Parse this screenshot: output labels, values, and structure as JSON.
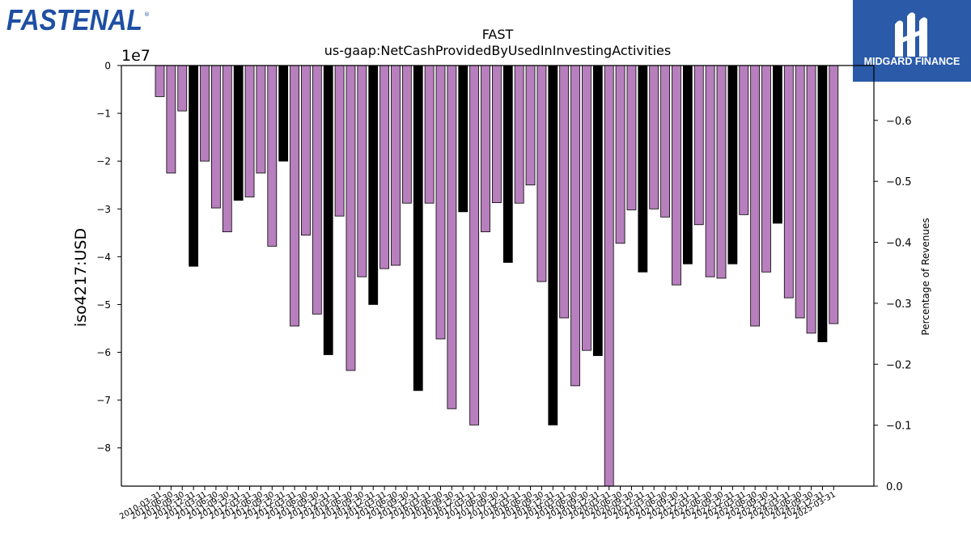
{
  "logos": {
    "left_text": "FASTENAL",
    "right_text": "MIDGARD FINANCE",
    "left_color": "#1e4fa3",
    "right_bg": "#2a5aa8"
  },
  "chart_data": {
    "type": "bar",
    "title": "FAST",
    "subtitle": "us-gaap:NetCashProvidedByUsedInInvestingActivities",
    "ylabel": "iso4217:USD",
    "y_offset_text": "1e7",
    "y2label": "Percentage of Revenues",
    "ylim": [
      -88000000,
      0
    ],
    "y_ticks": [
      0,
      -10000000,
      -20000000,
      -30000000,
      -40000000,
      -50000000,
      -60000000,
      -70000000,
      -80000000
    ],
    "y_tick_labels": [
      "0",
      "−1",
      "−2",
      "−3",
      "−4",
      "−5",
      "−6",
      "−7",
      "−8"
    ],
    "y2lim": [
      0,
      -0.69
    ],
    "y2_ticks": [
      0.0,
      -0.1,
      -0.2,
      -0.3,
      -0.4,
      -0.5,
      -0.6
    ],
    "y2_tick_labels": [
      "0.0",
      "−0.1",
      "−0.2",
      "−0.3",
      "−0.4",
      "−0.5",
      "−0.6"
    ],
    "colors": {
      "quarter": "#b77fbd",
      "annual": "#000000"
    },
    "categories": [
      "2010-03-31",
      "2010-06-30",
      "2010-09-30",
      "2010-12-31",
      "2011-03-31",
      "2011-06-30",
      "2011-09-30",
      "2011-12-31",
      "2012-03-31",
      "2012-06-30",
      "2012-09-30",
      "2012-12-31",
      "2013-03-31",
      "2013-06-30",
      "2013-09-30",
      "2013-12-31",
      "2014-03-31",
      "2014-06-30",
      "2014-09-30",
      "2014-12-31",
      "2015-03-31",
      "2015-06-30",
      "2015-09-30",
      "2015-12-31",
      "2016-03-31",
      "2016-06-30",
      "2016-09-30",
      "2016-12-31",
      "2017-03-31",
      "2017-06-30",
      "2017-09-30",
      "2017-12-31",
      "2018-03-31",
      "2018-06-30",
      "2018-09-30",
      "2018-12-31",
      "2019-03-31",
      "2019-06-30",
      "2019-09-30",
      "2019-12-31",
      "2020-03-31",
      "2020-06-30",
      "2020-09-30",
      "2020-12-31",
      "2021-03-31",
      "2021-06-30",
      "2021-09-30",
      "2021-12-31",
      "2022-03-31",
      "2022-06-30",
      "2022-09-30",
      "2022-12-31",
      "2023-03-31",
      "2023-06-30",
      "2023-09-30",
      "2023-12-31",
      "2024-03-31",
      "2024-06-30",
      "2024-09-30",
      "2024-12-31",
      "2025-03-31"
    ],
    "values": [
      -6500000,
      -22500000,
      -9500000,
      -42000000,
      -20000000,
      -29800000,
      -34800000,
      -28200000,
      -27500000,
      -22500000,
      -37800000,
      -20000000,
      -54500000,
      -35500000,
      -52000000,
      -60500000,
      -31500000,
      -63800000,
      -44200000,
      -50000000,
      -42500000,
      -41800000,
      -28800000,
      -68000000,
      -28800000,
      -57200000,
      -71800000,
      -30600000,
      -75200000,
      -34800000,
      -28700000,
      -41200000,
      -28800000,
      -25000000,
      -45200000,
      -75200000,
      -52800000,
      -67000000,
      -59600000,
      -60700000,
      -88000000,
      -37200000,
      -30200000,
      -43200000,
      -30000000,
      -31700000,
      -45900000,
      -41500000,
      -33300000,
      -44200000,
      -44500000,
      -41500000,
      -31200000,
      -54500000,
      -43200000,
      -33000000,
      -48600000,
      -52800000,
      -56000000,
      -57800000,
      -54000000
    ],
    "annual_flags": [
      0,
      0,
      0,
      1,
      0,
      0,
      0,
      1,
      0,
      0,
      0,
      1,
      0,
      0,
      0,
      1,
      0,
      0,
      0,
      1,
      0,
      0,
      0,
      1,
      0,
      0,
      0,
      1,
      0,
      0,
      0,
      1,
      0,
      0,
      0,
      1,
      0,
      0,
      0,
      1,
      0,
      0,
      0,
      1,
      0,
      0,
      0,
      1,
      0,
      0,
      0,
      1,
      0,
      0,
      0,
      1,
      0,
      0,
      0,
      1,
      0
    ],
    "legend": "none",
    "grid": false
  }
}
